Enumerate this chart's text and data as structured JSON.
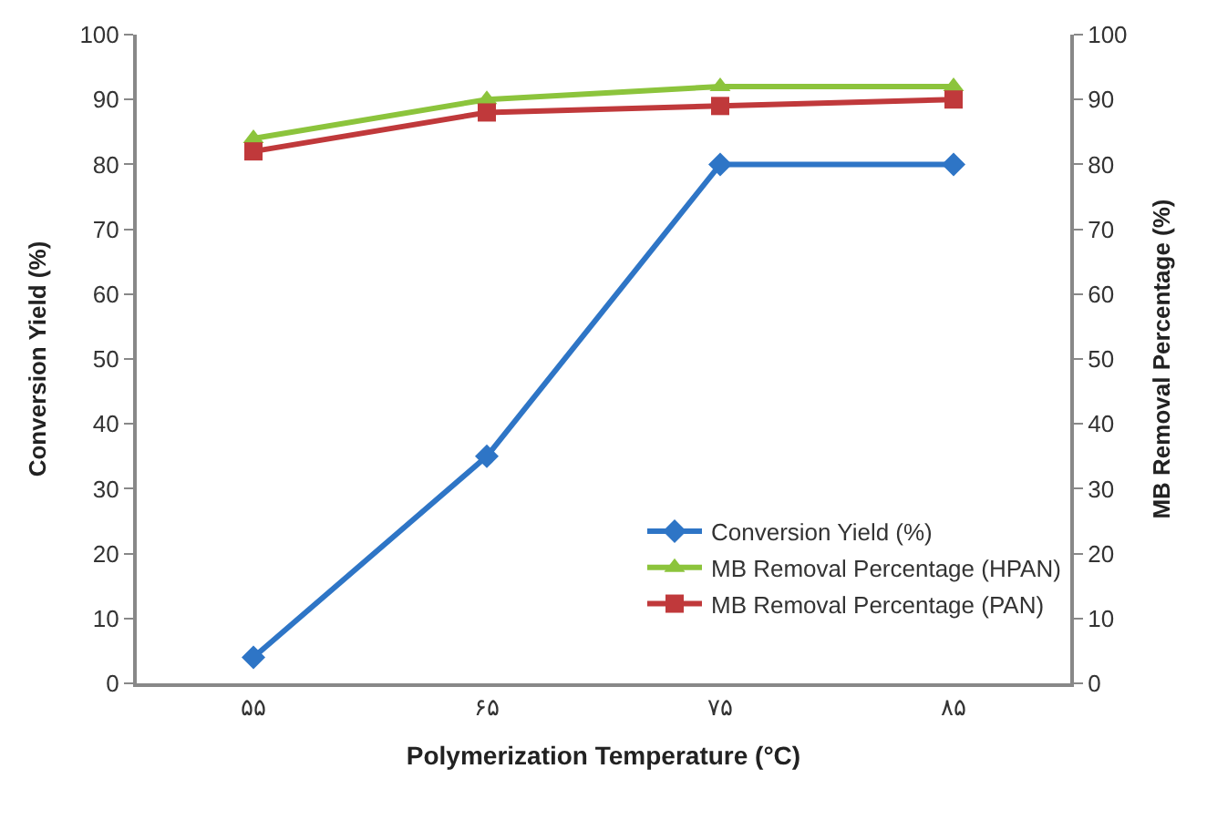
{
  "chart_data": {
    "type": "line",
    "xlabel": "Polymerization Temperature (°C)",
    "ylabel": "Conversion Yield (%)",
    "y2label": "MB Removal Percentage (%)",
    "categories": [
      "۵۵",
      "۶۵",
      "۷۵",
      "۸۵"
    ],
    "ylim": [
      0,
      100
    ],
    "yticks": [
      0,
      10,
      20,
      30,
      40,
      50,
      60,
      70,
      80,
      90,
      100
    ],
    "y2lim": [
      0,
      100
    ],
    "y2ticks": [
      0,
      10,
      20,
      30,
      40,
      50,
      60,
      70,
      80,
      90,
      100
    ],
    "legend": "bottom right",
    "series": [
      {
        "name": "Conversion Yield (%)",
        "color": "#2e75c6",
        "marker": "diamond",
        "values": [
          4,
          35,
          80,
          80
        ]
      },
      {
        "name": "MB Removal Percentage (HPAN)",
        "color": "#8cc43c",
        "marker": "triangle",
        "axis": "y2",
        "values": [
          84,
          90,
          92,
          92
        ]
      },
      {
        "name": "MB Removal Percentage (PAN)",
        "color": "#c0393b",
        "marker": "square",
        "axis": "y2",
        "values": [
          82,
          88,
          89,
          90
        ]
      }
    ]
  }
}
